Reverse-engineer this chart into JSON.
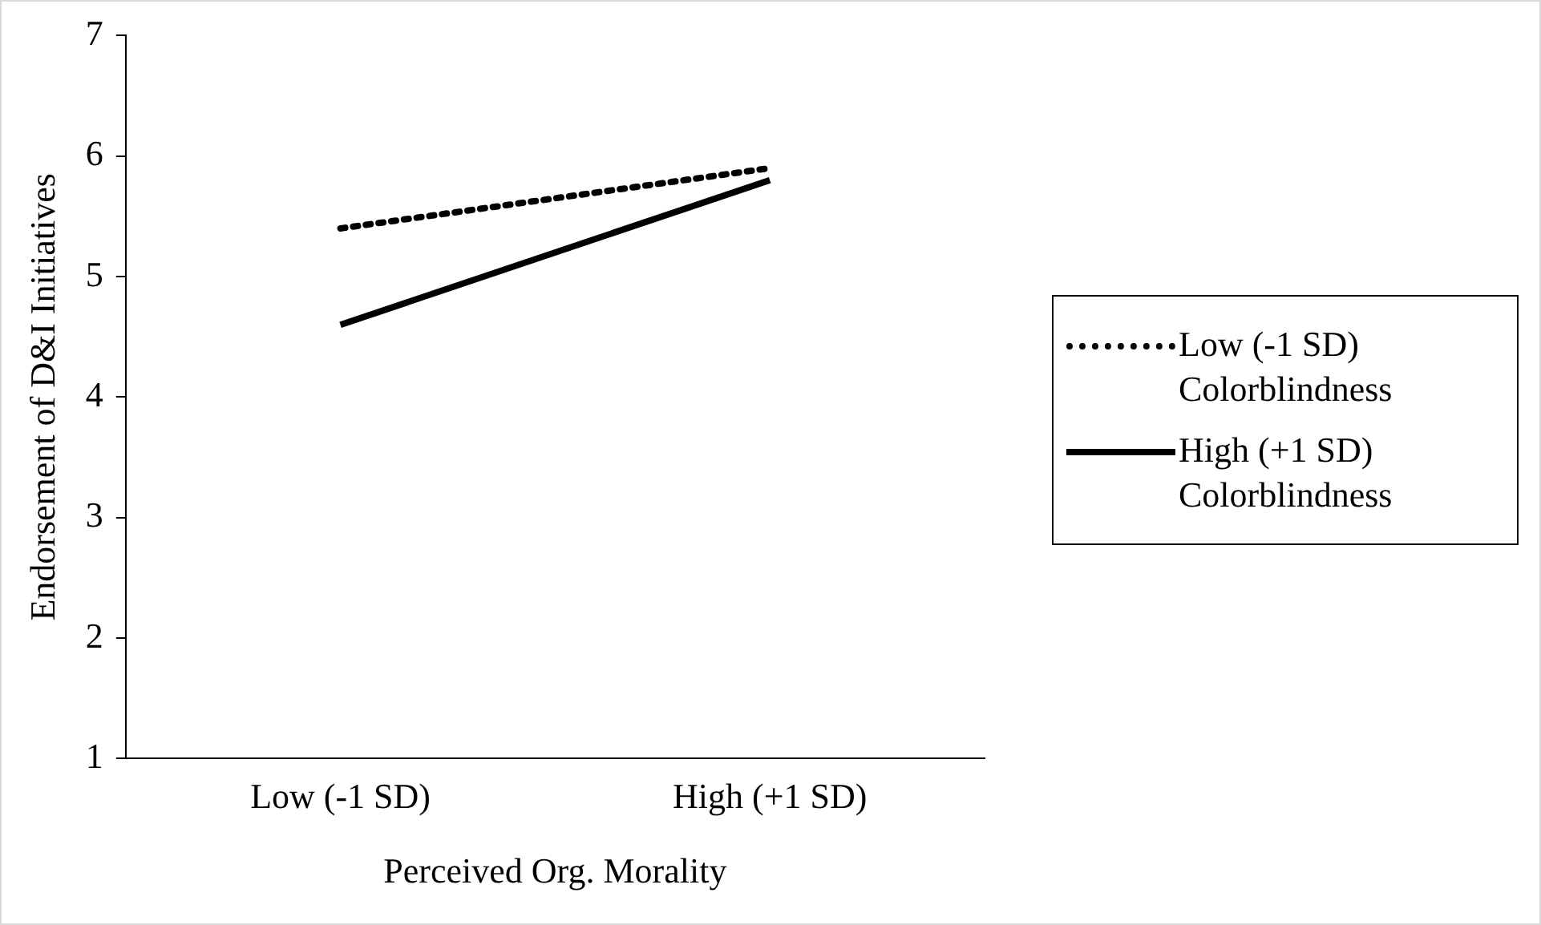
{
  "chart_data": {
    "type": "line",
    "xlabel": "Perceived Org. Morality",
    "ylabel": "Endorsement of D&I Initiatives",
    "categories": [
      "Low (-1 SD)",
      "High (+1 SD)"
    ],
    "series": [
      {
        "name": "Low (-1 SD) Colorblindness",
        "color": "#000000",
        "values": [
          5.4,
          5.9
        ],
        "line_style": "dotted"
      },
      {
        "name": "High (+1 SD) Colorblindness",
        "color": "#000000",
        "values": [
          4.6,
          5.8
        ],
        "line_style": "solid"
      }
    ],
    "ylim": [
      1,
      7
    ],
    "yticks": [
      1,
      2,
      3,
      4,
      5,
      6,
      7
    ],
    "grid": false,
    "legend": "right",
    "marker": "none"
  }
}
